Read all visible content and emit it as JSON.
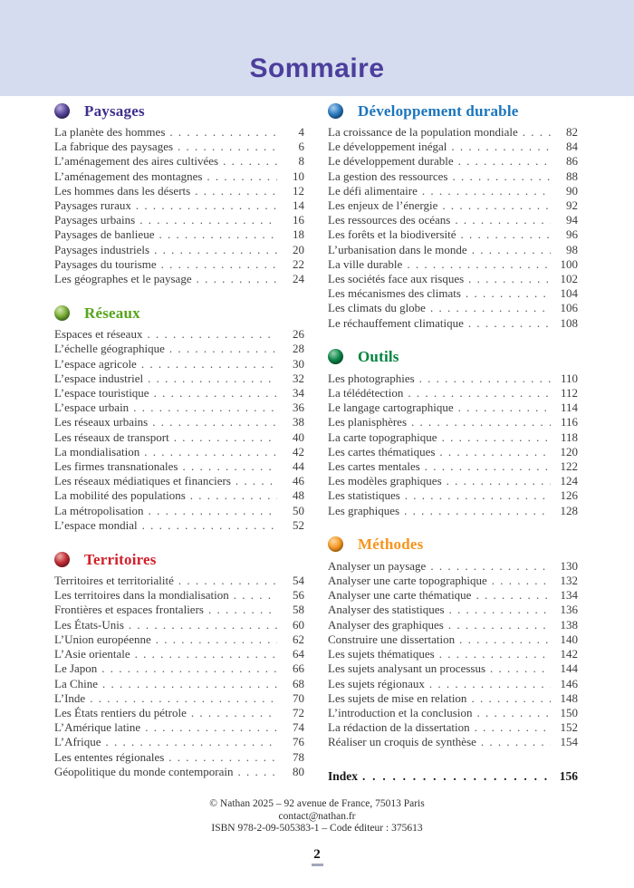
{
  "header": {
    "title": "Sommaire",
    "band_color": "#d5dcef",
    "title_color": "#4c3e9c"
  },
  "columns": {
    "left": [
      {
        "id": "paysages",
        "title": "Paysages",
        "color": "#3f2f8e",
        "sphere": [
          "#b9aede",
          "#5b479b",
          "#2a1a5e"
        ],
        "entries": [
          {
            "label": "La planète des hommes",
            "page": "4"
          },
          {
            "label": "La fabrique des paysages",
            "page": "6"
          },
          {
            "label": "L’aménagement des aires cultivées",
            "page": "8"
          },
          {
            "label": "L’aménagement des montagnes",
            "page": "10"
          },
          {
            "label": "Les hommes dans les déserts",
            "page": "12"
          },
          {
            "label": "Paysages ruraux",
            "page": "14"
          },
          {
            "label": "Paysages urbains",
            "page": "16"
          },
          {
            "label": "Paysages de banlieue",
            "page": "18"
          },
          {
            "label": "Paysages industriels",
            "page": "20"
          },
          {
            "label": "Paysages du tourisme",
            "page": "22"
          },
          {
            "label": "Les géographes et le paysage",
            "page": "24"
          }
        ]
      },
      {
        "id": "reseaux",
        "title": "Réseaux",
        "color": "#57a41e",
        "sphere": [
          "#d6e8b0",
          "#7cae3a",
          "#336b10"
        ],
        "entries": [
          {
            "label": "Espaces et réseaux",
            "page": "26"
          },
          {
            "label": "L’échelle géographique",
            "page": "28"
          },
          {
            "label": "L’espace agricole",
            "page": "30"
          },
          {
            "label": "L’espace industriel",
            "page": "32"
          },
          {
            "label": "L’espace touristique",
            "page": "34"
          },
          {
            "label": "L’espace urbain",
            "page": "36"
          },
          {
            "label": "Les réseaux urbains",
            "page": "38"
          },
          {
            "label": "Les réseaux de transport",
            "page": "40"
          },
          {
            "label": "La mondialisation",
            "page": "42"
          },
          {
            "label": "Les firmes transnationales",
            "page": "44"
          },
          {
            "label": "Les réseaux médiatiques et financiers",
            "page": "46"
          },
          {
            "label": "La mobilité des populations",
            "page": "48"
          },
          {
            "label": "La métropolisation",
            "page": "50"
          },
          {
            "label": "L’espace mondial",
            "page": "52"
          }
        ]
      },
      {
        "id": "territoires",
        "title": "Territoires",
        "color": "#d11f29",
        "sphere": [
          "#eab0a8",
          "#c5303a",
          "#7e1218"
        ],
        "entries": [
          {
            "label": "Territoires et territorialité",
            "page": "54"
          },
          {
            "label": "Les territoires dans la mondialisation",
            "page": "56"
          },
          {
            "label": "Frontières et espaces frontaliers",
            "page": "58"
          },
          {
            "label": "Les États-Unis",
            "page": "60"
          },
          {
            "label": "L’Union européenne",
            "page": "62"
          },
          {
            "label": "L’Asie orientale",
            "page": "64"
          },
          {
            "label": "Le Japon",
            "page": "66"
          },
          {
            "label": "La Chine",
            "page": "68"
          },
          {
            "label": "L’Inde",
            "page": "70"
          },
          {
            "label": "Les États rentiers du pétrole",
            "page": "72"
          },
          {
            "label": "L’Amérique latine",
            "page": "74"
          },
          {
            "label": "L’Afrique",
            "page": "76"
          },
          {
            "label": "Les ententes régionales",
            "page": "78"
          },
          {
            "label": "Géopolitique du monde contemporain",
            "page": "80"
          }
        ]
      }
    ],
    "right": [
      {
        "id": "developpement-durable",
        "title": "Développement durable",
        "color": "#1b75bd",
        "sphere": [
          "#a6cdea",
          "#2e7ec4",
          "#10497e"
        ],
        "entries": [
          {
            "label": "La croissance de la population mondiale",
            "page": "82"
          },
          {
            "label": "Le développement inégal",
            "page": "84"
          },
          {
            "label": "Le développement durable",
            "page": "86"
          },
          {
            "label": "La gestion des ressources",
            "page": "88"
          },
          {
            "label": "Le défi alimentaire",
            "page": "90"
          },
          {
            "label": "Les enjeux de l’énergie",
            "page": "92"
          },
          {
            "label": "Les ressources des océans",
            "page": "94"
          },
          {
            "label": "Les forêts et la biodiversité",
            "page": "96"
          },
          {
            "label": "L’urbanisation dans le monde",
            "page": "98"
          },
          {
            "label": "La ville durable",
            "page": "100"
          },
          {
            "label": "Les sociétés face aux risques",
            "page": "102"
          },
          {
            "label": "Les mécanismes des climats",
            "page": "104"
          },
          {
            "label": "Les climats du globe",
            "page": "106"
          },
          {
            "label": "Le réchauffement climatique",
            "page": "108"
          }
        ]
      },
      {
        "id": "outils",
        "title": "Outils",
        "color": "#00833e",
        "sphere": [
          "#9dd0b0",
          "#0f8a4c",
          "#015228"
        ],
        "entries": [
          {
            "label": "Les photographies",
            "page": "110"
          },
          {
            "label": "La télédétection",
            "page": "112"
          },
          {
            "label": "Le langage cartographique",
            "page": "114"
          },
          {
            "label": "Les planisphères",
            "page": "116"
          },
          {
            "label": "La carte topographique",
            "page": "118"
          },
          {
            "label": "Les cartes thématiques",
            "page": "120"
          },
          {
            "label": "Les cartes mentales",
            "page": "122"
          },
          {
            "label": "Les modèles graphiques",
            "page": "124"
          },
          {
            "label": "Les statistiques",
            "page": "126"
          },
          {
            "label": "Les graphiques",
            "page": "128"
          }
        ]
      },
      {
        "id": "methodes",
        "title": "Méthodes",
        "color": "#f7941d",
        "sphere": [
          "#fcd9a2",
          "#f89c2a",
          "#c26a00"
        ],
        "entries": [
          {
            "label": "Analyser un paysage",
            "page": "130"
          },
          {
            "label": "Analyser une carte topographique",
            "page": "132"
          },
          {
            "label": "Analyser une carte thématique",
            "page": "134"
          },
          {
            "label": "Analyser des statistiques",
            "page": "136"
          },
          {
            "label": "Analyser des graphiques",
            "page": "138"
          },
          {
            "label": "Construire une dissertation",
            "page": "140"
          },
          {
            "label": "Les sujets thématiques",
            "page": "142"
          },
          {
            "label": "Les sujets analysant un processus",
            "page": "144"
          },
          {
            "label": "Les sujets régionaux",
            "page": "146"
          },
          {
            "label": "Les sujets de mise en relation",
            "page": "148"
          },
          {
            "label": "L’introduction et la conclusion",
            "page": "150"
          },
          {
            "label": "La rédaction de la dissertation",
            "page": "152"
          },
          {
            "label": "Réaliser un croquis de synthèse",
            "page": "154"
          }
        ]
      }
    ]
  },
  "index_row": {
    "label": "Index",
    "page": "156"
  },
  "footer": {
    "lines": [
      "© Nathan 2025 – 92 avenue de France, 75013 Paris",
      "contact@nathan.fr",
      "ISBN 978-2-09-505383-1 – Code éditeur : 375613"
    ],
    "page_number": "2"
  }
}
